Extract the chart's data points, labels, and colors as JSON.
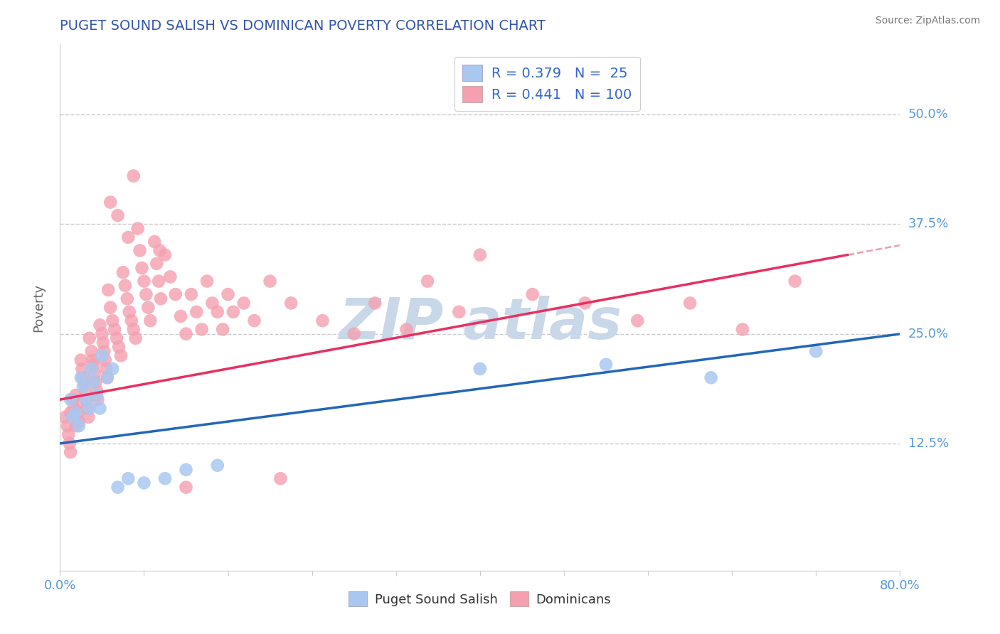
{
  "title": "PUGET SOUND SALISH VS DOMINICAN POVERTY CORRELATION CHART",
  "source": "Source: ZipAtlas.com",
  "ylabel": "Poverty",
  "ytick_labels": [
    "12.5%",
    "25.0%",
    "37.5%",
    "50.0%"
  ],
  "ytick_values": [
    0.125,
    0.25,
    0.375,
    0.5
  ],
  "xlim": [
    0.0,
    0.8
  ],
  "ylim": [
    -0.02,
    0.58
  ],
  "legend_blue_r": "0.379",
  "legend_blue_n": "25",
  "legend_pink_r": "0.441",
  "legend_pink_n": "100",
  "blue_scatter_color": "#a8c8f0",
  "pink_scatter_color": "#f4a0b0",
  "blue_line_color": "#2266bb",
  "pink_line_color": "#e83060",
  "pink_dash_color": "#e8a0b0",
  "watermark_color": "#c8d8e8",
  "background_color": "#ffffff",
  "grid_color": "#cccccc",
  "tick_label_color": "#5599dd",
  "title_color": "#3355aa",
  "source_color": "#777777",
  "legend_label_color": "#3366cc",
  "bottom_legend_color": "#333333",
  "blue_points": [
    [
      0.01,
      0.175
    ],
    [
      0.012,
      0.155
    ],
    [
      0.015,
      0.16
    ],
    [
      0.018,
      0.145
    ],
    [
      0.02,
      0.2
    ],
    [
      0.022,
      0.19
    ],
    [
      0.025,
      0.175
    ],
    [
      0.028,
      0.165
    ],
    [
      0.03,
      0.21
    ],
    [
      0.032,
      0.195
    ],
    [
      0.035,
      0.18
    ],
    [
      0.038,
      0.165
    ],
    [
      0.04,
      0.225
    ],
    [
      0.045,
      0.2
    ],
    [
      0.05,
      0.21
    ],
    [
      0.055,
      0.075
    ],
    [
      0.065,
      0.085
    ],
    [
      0.08,
      0.08
    ],
    [
      0.1,
      0.085
    ],
    [
      0.12,
      0.095
    ],
    [
      0.15,
      0.1
    ],
    [
      0.4,
      0.21
    ],
    [
      0.52,
      0.215
    ],
    [
      0.62,
      0.2
    ],
    [
      0.72,
      0.23
    ]
  ],
  "pink_points": [
    [
      0.005,
      0.155
    ],
    [
      0.007,
      0.145
    ],
    [
      0.008,
      0.135
    ],
    [
      0.009,
      0.125
    ],
    [
      0.01,
      0.115
    ],
    [
      0.01,
      0.16
    ],
    [
      0.012,
      0.175
    ],
    [
      0.013,
      0.165
    ],
    [
      0.014,
      0.155
    ],
    [
      0.015,
      0.145
    ],
    [
      0.015,
      0.18
    ],
    [
      0.016,
      0.17
    ],
    [
      0.017,
      0.16
    ],
    [
      0.018,
      0.15
    ],
    [
      0.02,
      0.22
    ],
    [
      0.021,
      0.21
    ],
    [
      0.022,
      0.2
    ],
    [
      0.023,
      0.195
    ],
    [
      0.024,
      0.185
    ],
    [
      0.025,
      0.175
    ],
    [
      0.026,
      0.165
    ],
    [
      0.027,
      0.155
    ],
    [
      0.028,
      0.245
    ],
    [
      0.03,
      0.23
    ],
    [
      0.031,
      0.22
    ],
    [
      0.032,
      0.215
    ],
    [
      0.033,
      0.205
    ],
    [
      0.034,
      0.195
    ],
    [
      0.035,
      0.185
    ],
    [
      0.036,
      0.175
    ],
    [
      0.038,
      0.26
    ],
    [
      0.04,
      0.25
    ],
    [
      0.041,
      0.24
    ],
    [
      0.042,
      0.23
    ],
    [
      0.043,
      0.22
    ],
    [
      0.044,
      0.21
    ],
    [
      0.045,
      0.2
    ],
    [
      0.046,
      0.3
    ],
    [
      0.048,
      0.28
    ],
    [
      0.05,
      0.265
    ],
    [
      0.052,
      0.255
    ],
    [
      0.054,
      0.245
    ],
    [
      0.056,
      0.235
    ],
    [
      0.058,
      0.225
    ],
    [
      0.06,
      0.32
    ],
    [
      0.062,
      0.305
    ],
    [
      0.064,
      0.29
    ],
    [
      0.066,
      0.275
    ],
    [
      0.068,
      0.265
    ],
    [
      0.07,
      0.255
    ],
    [
      0.072,
      0.245
    ],
    [
      0.074,
      0.37
    ],
    [
      0.076,
      0.345
    ],
    [
      0.078,
      0.325
    ],
    [
      0.08,
      0.31
    ],
    [
      0.082,
      0.295
    ],
    [
      0.084,
      0.28
    ],
    [
      0.086,
      0.265
    ],
    [
      0.09,
      0.355
    ],
    [
      0.092,
      0.33
    ],
    [
      0.094,
      0.31
    ],
    [
      0.096,
      0.29
    ],
    [
      0.1,
      0.34
    ],
    [
      0.105,
      0.315
    ],
    [
      0.11,
      0.295
    ],
    [
      0.115,
      0.27
    ],
    [
      0.12,
      0.25
    ],
    [
      0.125,
      0.295
    ],
    [
      0.13,
      0.275
    ],
    [
      0.135,
      0.255
    ],
    [
      0.14,
      0.31
    ],
    [
      0.145,
      0.285
    ],
    [
      0.15,
      0.275
    ],
    [
      0.155,
      0.255
    ],
    [
      0.07,
      0.43
    ],
    [
      0.16,
      0.295
    ],
    [
      0.165,
      0.275
    ],
    [
      0.175,
      0.285
    ],
    [
      0.185,
      0.265
    ],
    [
      0.2,
      0.31
    ],
    [
      0.22,
      0.285
    ],
    [
      0.25,
      0.265
    ],
    [
      0.28,
      0.25
    ],
    [
      0.3,
      0.285
    ],
    [
      0.33,
      0.255
    ],
    [
      0.35,
      0.31
    ],
    [
      0.38,
      0.275
    ],
    [
      0.4,
      0.34
    ],
    [
      0.45,
      0.295
    ],
    [
      0.5,
      0.285
    ],
    [
      0.12,
      0.075
    ],
    [
      0.21,
      0.085
    ],
    [
      0.55,
      0.265
    ],
    [
      0.6,
      0.285
    ],
    [
      0.65,
      0.255
    ],
    [
      0.7,
      0.31
    ],
    [
      0.048,
      0.4
    ],
    [
      0.055,
      0.385
    ],
    [
      0.065,
      0.36
    ],
    [
      0.095,
      0.345
    ]
  ]
}
